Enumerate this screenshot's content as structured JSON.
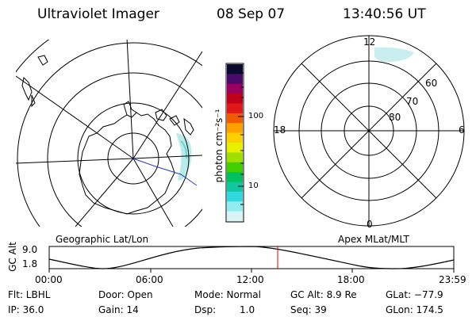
{
  "header": {
    "title": "Ultraviolet Imager",
    "date": "08 Sep 07",
    "time": "13:40:56 UT"
  },
  "left_panel": {
    "caption": "Geographic Lat/Lon"
  },
  "right_panel": {
    "caption": "Apex MLat/MLT",
    "mlt_labels": {
      "top": "12",
      "bottom": "0",
      "left": "18",
      "right": "6"
    },
    "mlat_labels": [
      "60",
      "70",
      "80"
    ]
  },
  "colorbar": {
    "unit_label": "photon cm⁻²s⁻¹",
    "ticks": [
      "100",
      "10"
    ],
    "colors": [
      "#0a0a30",
      "#4a0a6a",
      "#9a0060",
      "#c0001a",
      "#e01818",
      "#f05a00",
      "#ffa000",
      "#ffd000",
      "#e8f000",
      "#a0e000",
      "#40d000",
      "#00c060",
      "#10c8a0",
      "#30d8e0",
      "#90ecf0",
      "#d8f4f4"
    ]
  },
  "orbit_plot": {
    "ylabel": "GC Alt",
    "yticks": [
      "9.0",
      "1.8"
    ],
    "xticks": [
      "00:00",
      "06:00",
      "12:00",
      "18:00",
      "23:59"
    ],
    "marker_time": "13:40:56",
    "marker_color": "#e00000"
  },
  "footer": {
    "filter": "Flt: LBHL",
    "door": "Door: Open",
    "mode": "Mode: Normal",
    "gc_alt": "GC Alt: 8.9 Re",
    "glat": "GLat: −77.9",
    "ip": "IP: 36.0",
    "gain": "Gain: 14",
    "dsp_label": "Dsp:",
    "dsp_value": "1.0",
    "seq": "Seq: 39",
    "glon": "GLon: 174.5"
  }
}
